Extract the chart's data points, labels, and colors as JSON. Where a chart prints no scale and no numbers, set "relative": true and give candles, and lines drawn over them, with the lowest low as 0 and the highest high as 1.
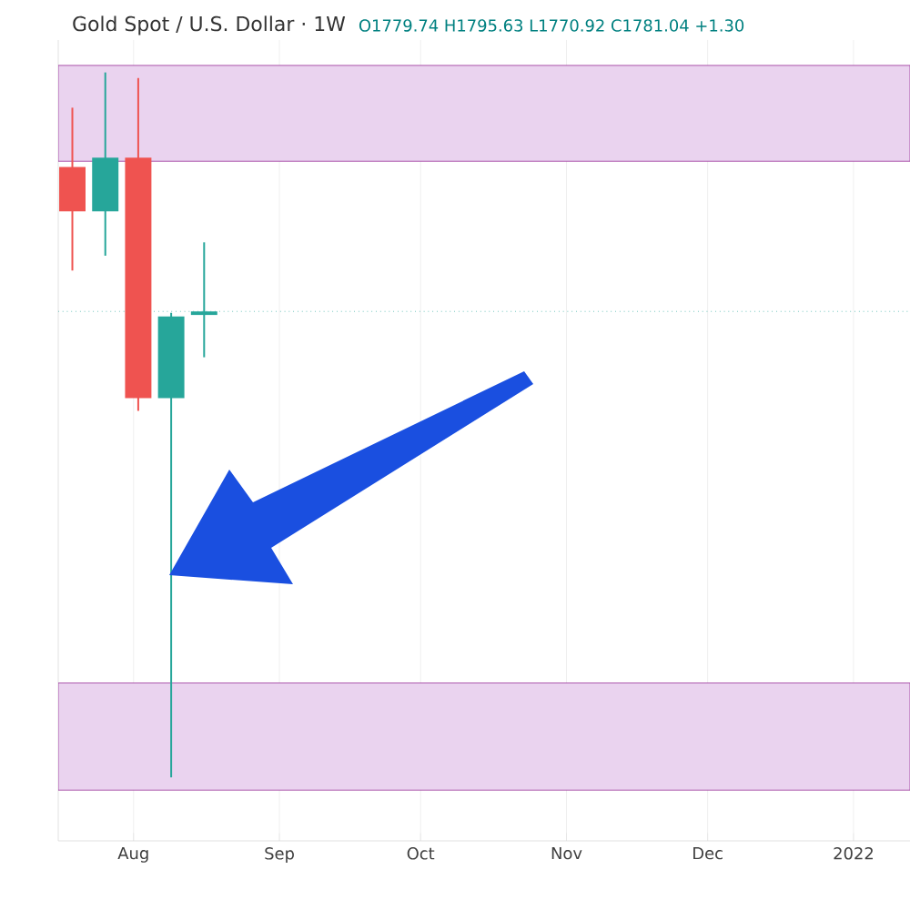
{
  "chart_data": {
    "type": "candlestick",
    "title": "Gold Spot / U.S. Dollar · 1W",
    "annotations": [
      "O1779.74 H1795.63 L1770.92 C1781.04 +1.30"
    ],
    "relative": true,
    "x": [
      "2021-07-19",
      "2021-07-26",
      "2021-08-02",
      "2021-08-09",
      "2021-08-16"
    ],
    "ohlc": [
      [
        0.866,
        0.95,
        0.719,
        0.803
      ],
      [
        0.803,
        1,
        0.74,
        0.879
      ],
      [
        0.879,
        0.992,
        0.52,
        0.538
      ],
      [
        0.538,
        0.659,
        0,
        0.654
      ],
      [
        0.656,
        0.759,
        0.596,
        0.661
      ]
    ],
    "colors": [
      "#ef5350",
      "#26a69a",
      "#ef5350",
      "#26a69a",
      "#26a69a"
    ],
    "xlim": [
      "2021-07-16",
      "2022-01-13"
    ],
    "xticks": [
      {
        "value": "2021-08-01",
        "label": "Aug"
      },
      {
        "value": "2021-09-01",
        "label": "Sep"
      },
      {
        "value": "2021-10-01",
        "label": "Oct"
      },
      {
        "value": "2021-11-01",
        "label": "Nov"
      },
      {
        "value": "2021-12-01",
        "label": "Dec"
      },
      {
        "value": "2022-01-01",
        "label": "2022"
      }
    ],
    "bands": [
      {
        "axis": "y",
        "from": 0.874,
        "to": 1.01,
        "color": "#ead3ef"
      },
      {
        "axis": "y",
        "from": -0.018,
        "to": 0.134,
        "color": "#ead3ef"
      }
    ],
    "ref_lines": [
      {
        "axis": "y",
        "value": 0.661,
        "color": "#26a69a",
        "line_style": "dotted"
      }
    ],
    "grid": "x"
  }
}
